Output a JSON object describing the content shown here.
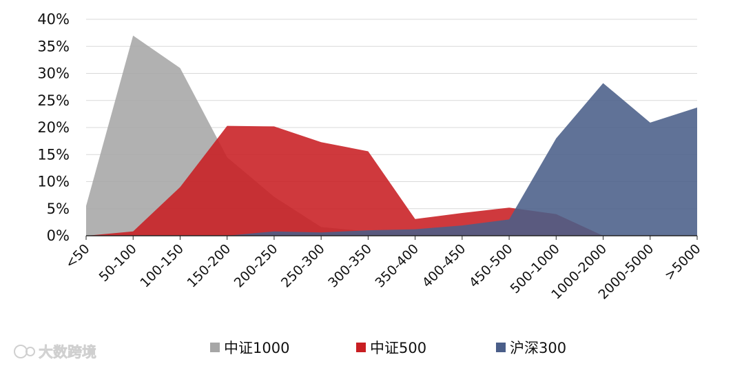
{
  "chart_data": {
    "type": "area",
    "categories": [
      "<50",
      "50-100",
      "100-150",
      "150-200",
      "200-250",
      "250-300",
      "300-350",
      "350-400",
      "400-450",
      "450-500",
      "500-1000",
      "1000-2000",
      "2000-5000",
      ">5000"
    ],
    "ylim": [
      0,
      40
    ],
    "yticks": [
      "0%",
      "5%",
      "10%",
      "15%",
      "20%",
      "25%",
      "30%",
      "35%",
      "40%"
    ],
    "grid": true,
    "legend_position": "bottom",
    "series": [
      {
        "name": "中证1000",
        "color": "#a6a6a6",
        "values": [
          5.5,
          37,
          31,
          14.5,
          7.2,
          1.6,
          0.8,
          0.5,
          0.3,
          0,
          0,
          0,
          0,
          0
        ]
      },
      {
        "name": "中证500",
        "color": "#c81e22",
        "values": [
          0,
          0.8,
          9,
          20.3,
          20.2,
          17.3,
          15.6,
          3.1,
          4.2,
          5.2,
          4,
          0,
          0,
          0
        ]
      },
      {
        "name": "沪深300",
        "color": "#4a5e89",
        "values": [
          0,
          0,
          0,
          0,
          0.8,
          0.6,
          1,
          1.2,
          1.9,
          3,
          18,
          28.2,
          20.9,
          23.7
        ]
      }
    ]
  },
  "watermark": "大数跨境"
}
